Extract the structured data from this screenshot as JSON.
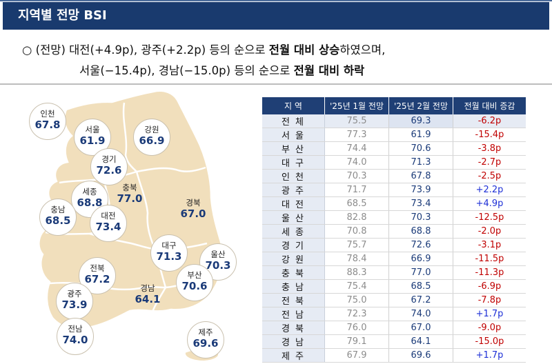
{
  "header": {
    "title": "지역별 전망 BSI"
  },
  "summary": {
    "line1_plain": "○ (전망) 대전(+4.9p), 광주(+2.2p) 등의 순으로 ",
    "line1_bold": "전월 대비 상승",
    "line1_end": "하였으며,",
    "line2_plain": "서울(−15.4p), 경남(−15.0p) 등의 순으로 ",
    "line2_bold": "전월 대비 하락"
  },
  "map": {
    "regions": [
      {
        "name": "인천",
        "value": "67.8"
      },
      {
        "name": "서울",
        "value": "61.9"
      },
      {
        "name": "강원",
        "value": "66.9"
      },
      {
        "name": "경기",
        "value": "72.6"
      },
      {
        "name": "세종",
        "value": "68.8"
      },
      {
        "name": "충북",
        "value": "77.0"
      },
      {
        "name": "충남",
        "value": "68.5"
      },
      {
        "name": "대전",
        "value": "73.4"
      },
      {
        "name": "경북",
        "value": "67.0"
      },
      {
        "name": "대구",
        "value": "71.3"
      },
      {
        "name": "울산",
        "value": "70.3"
      },
      {
        "name": "전북",
        "value": "67.2"
      },
      {
        "name": "부산",
        "value": "70.6"
      },
      {
        "name": "광주",
        "value": "73.9"
      },
      {
        "name": "경남",
        "value": "64.1"
      },
      {
        "name": "전남",
        "value": "74.0"
      },
      {
        "name": "제주",
        "value": "69.6"
      }
    ]
  },
  "table": {
    "headers": [
      "지 역",
      "'25년 1월 전망",
      "'25년 2월 전망",
      "전월 대비 증감"
    ],
    "rows": [
      [
        "전 체",
        "75.5",
        "69.3",
        "-6.2p"
      ],
      [
        "서 울",
        "77.3",
        "61.9",
        "-15.4p"
      ],
      [
        "부 산",
        "74.4",
        "70.6",
        "-3.8p"
      ],
      [
        "대 구",
        "74.0",
        "71.3",
        "-2.7p"
      ],
      [
        "인 천",
        "70.3",
        "67.8",
        "-2.5p"
      ],
      [
        "광 주",
        "71.7",
        "73.9",
        "+2.2p"
      ],
      [
        "대 전",
        "68.5",
        "73.4",
        "+4.9p"
      ],
      [
        "울 산",
        "82.8",
        "70.3",
        "-12.5p"
      ],
      [
        "세 종",
        "70.8",
        "68.8",
        "-2.0p"
      ],
      [
        "경 기",
        "75.7",
        "72.6",
        "-3.1p"
      ],
      [
        "강 원",
        "78.4",
        "66.9",
        "-11.5p"
      ],
      [
        "충 북",
        "88.3",
        "77.0",
        "-11.3p"
      ],
      [
        "충 남",
        "75.4",
        "68.5",
        "-6.9p"
      ],
      [
        "전 북",
        "75.0",
        "67.2",
        "-7.8p"
      ],
      [
        "전 남",
        "72.3",
        "74.0",
        "+1.7p"
      ],
      [
        "경 북",
        "76.0",
        "67.0",
        "-9.0p"
      ],
      [
        "경 남",
        "79.1",
        "64.1",
        "-15.0p"
      ],
      [
        "제 주",
        "67.9",
        "69.6",
        "+1.7p"
      ]
    ]
  },
  "colors": {
    "header_bg": "#193a6e",
    "map_fill": "#f1dfbc",
    "value_text": "#1a3a78",
    "decrease": "#c00000",
    "increase": "#1d2fd6"
  }
}
